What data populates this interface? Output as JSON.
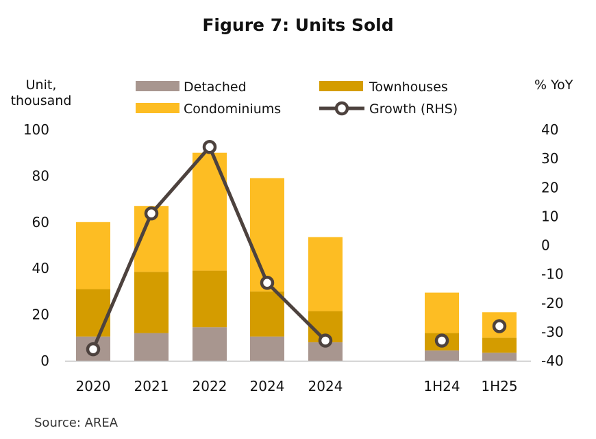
{
  "chart_data": {
    "type": "bar",
    "stacked": true,
    "title": "Figure 7: Units Sold",
    "ylabel_left": "Unit, thousand",
    "ylabel_right": "% YoY",
    "categories": [
      "2020",
      "2021",
      "2022",
      "2024",
      "2024",
      "1H24",
      "1H25"
    ],
    "series": [
      {
        "name": "Detached",
        "type": "bar",
        "color": "#a8968f",
        "values": [
          10.5,
          12,
          14.5,
          10.5,
          8,
          4.5,
          3.5
        ]
      },
      {
        "name": "Townhouses",
        "type": "bar",
        "color": "#d49c00",
        "values": [
          20.5,
          26.5,
          24.5,
          19.5,
          13.5,
          7.5,
          6.5
        ]
      },
      {
        "name": "Condominiums",
        "type": "bar",
        "color": "#fdbd23",
        "values": [
          29,
          28.5,
          51,
          49,
          32,
          17.5,
          11
        ]
      },
      {
        "name": "Growth (RHS)",
        "type": "line",
        "axis": "right",
        "color": "#4d423e",
        "values": [
          -36,
          11,
          34,
          -13,
          -33,
          -33,
          -28
        ]
      }
    ],
    "ylim_left": [
      0,
      100
    ],
    "ylim_right": [
      -40,
      40
    ],
    "yticks_left": [
      0,
      20,
      40,
      60,
      80,
      100
    ],
    "yticks_right": [
      -40,
      -30,
      -20,
      -10,
      0,
      10,
      20,
      30,
      40
    ],
    "line_segments": [
      [
        0,
        1,
        2,
        3,
        4
      ],
      [
        5
      ],
      [
        6
      ]
    ],
    "grid": false,
    "legend_position": "top",
    "source": "Source: AREA"
  }
}
